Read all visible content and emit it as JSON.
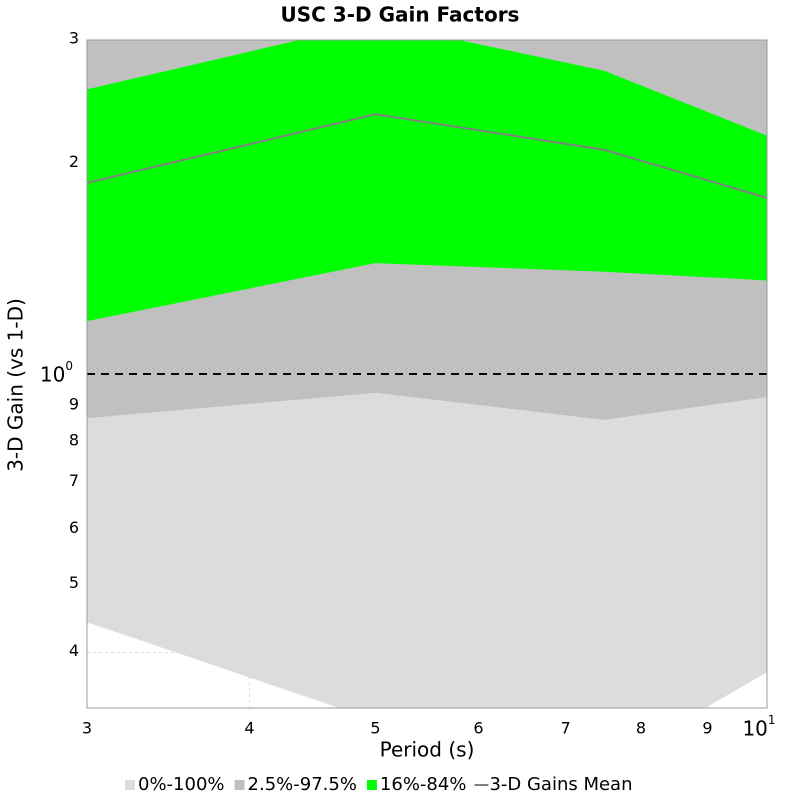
{
  "chart_data": {
    "type": "band-line",
    "title": "USC 3-D Gain Factors",
    "x_label": "Period (s)",
    "y_label": "3-D Gain (vs 1-D)",
    "x": [
      3,
      5,
      7.5,
      10
    ],
    "series": [
      {
        "name": "0%-100%",
        "color": "#dcdcdc",
        "lower": [
          0.442,
          0.32,
          0.275,
          0.375
        ],
        "upper": [
          4,
          4,
          4,
          4
        ]
      },
      {
        "name": "2.5%-97.5%",
        "color": "#c0c0c0",
        "lower": [
          0.865,
          0.94,
          0.86,
          0.927
        ],
        "upper": [
          3.5,
          3.5,
          3.5,
          3.5
        ]
      },
      {
        "name": "16%-84%",
        "color": "#00ff00",
        "lower": [
          1.19,
          1.44,
          1.4,
          1.36
        ],
        "upper": [
          2.55,
          3.18,
          2.71,
          2.19
        ]
      },
      {
        "name": "3-D Gains Mean",
        "color": "#808080",
        "values": [
          1.875,
          2.35,
          2.09,
          1.785
        ]
      }
    ],
    "xlim": [
      3,
      10
    ],
    "ylim": [
      0.3333,
      3
    ],
    "log_x": true,
    "log_y": true,
    "xticks": [
      3,
      4,
      5,
      6,
      7,
      8,
      9,
      {
        "value": 10,
        "label": "10^1"
      }
    ],
    "yticks": [
      {
        "value": 0.4,
        "label": "4"
      },
      {
        "value": 0.5,
        "label": "5"
      },
      {
        "value": 0.6,
        "label": "6"
      },
      {
        "value": 0.7,
        "label": "7"
      },
      {
        "value": 0.8,
        "label": "8"
      },
      {
        "value": 0.9,
        "label": "9"
      },
      {
        "value": 1,
        "label": "10^0"
      },
      2,
      3
    ],
    "reference_line": 1,
    "grid": true,
    "legend": "bottom"
  }
}
